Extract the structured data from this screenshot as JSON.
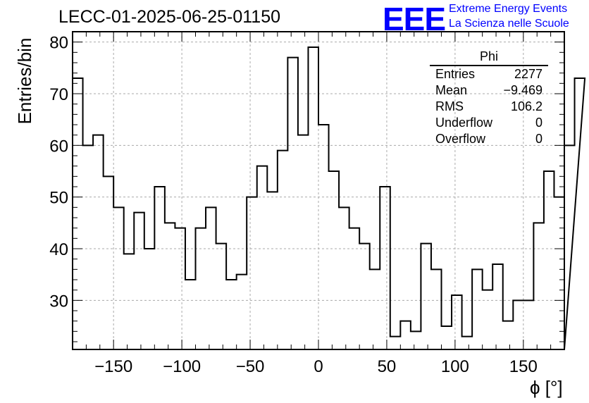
{
  "header": {
    "title": "LECC-01-2025-06-25-01150",
    "logo_text": "EEE",
    "logo_line1": "Extreme Energy Events",
    "logo_line2": "La Scienza nelle Scuole"
  },
  "stats": {
    "name": "Phi",
    "rows": [
      {
        "label": "Entries",
        "value": "2277"
      },
      {
        "label": "Mean",
        "value": "−9.469"
      },
      {
        "label": "RMS",
        "value": "106.2"
      },
      {
        "label": "Underflow",
        "value": "0"
      },
      {
        "label": "Overflow",
        "value": "0"
      }
    ]
  },
  "chart_data": {
    "type": "histogram",
    "title": "LECC-01-2025-06-25-01150",
    "xlabel": "ϕ [°]",
    "ylabel": "Entries/bin",
    "xlim": [
      -180,
      180
    ],
    "ylim": [
      20.5,
      82
    ],
    "bin_width": 7.5,
    "values": [
      73,
      60,
      62,
      54,
      48,
      39,
      47,
      40,
      52,
      45,
      44,
      34,
      44,
      48,
      41,
      34,
      35,
      50,
      56,
      51,
      59,
      77,
      62,
      79,
      64,
      55,
      48,
      44,
      41,
      36,
      52,
      23,
      26,
      24,
      41,
      36,
      25,
      31,
      23,
      36,
      32,
      37,
      26,
      30,
      30,
      45,
      55,
      50,
      60,
      73
    ],
    "xticks": [
      -150,
      -100,
      -50,
      0,
      50,
      100,
      150
    ],
    "xtick_labels": [
      "−150",
      "−100",
      "−50",
      "0",
      "50",
      "100",
      "150"
    ],
    "yticks": [
      30,
      40,
      50,
      60,
      70,
      80
    ],
    "ytick_labels": [
      "30",
      "40",
      "50",
      "60",
      "70",
      "80"
    ],
    "grid": true,
    "colors": {
      "line": "#000000",
      "grid": "#aaaaaa",
      "logo": "#0000ff"
    }
  }
}
